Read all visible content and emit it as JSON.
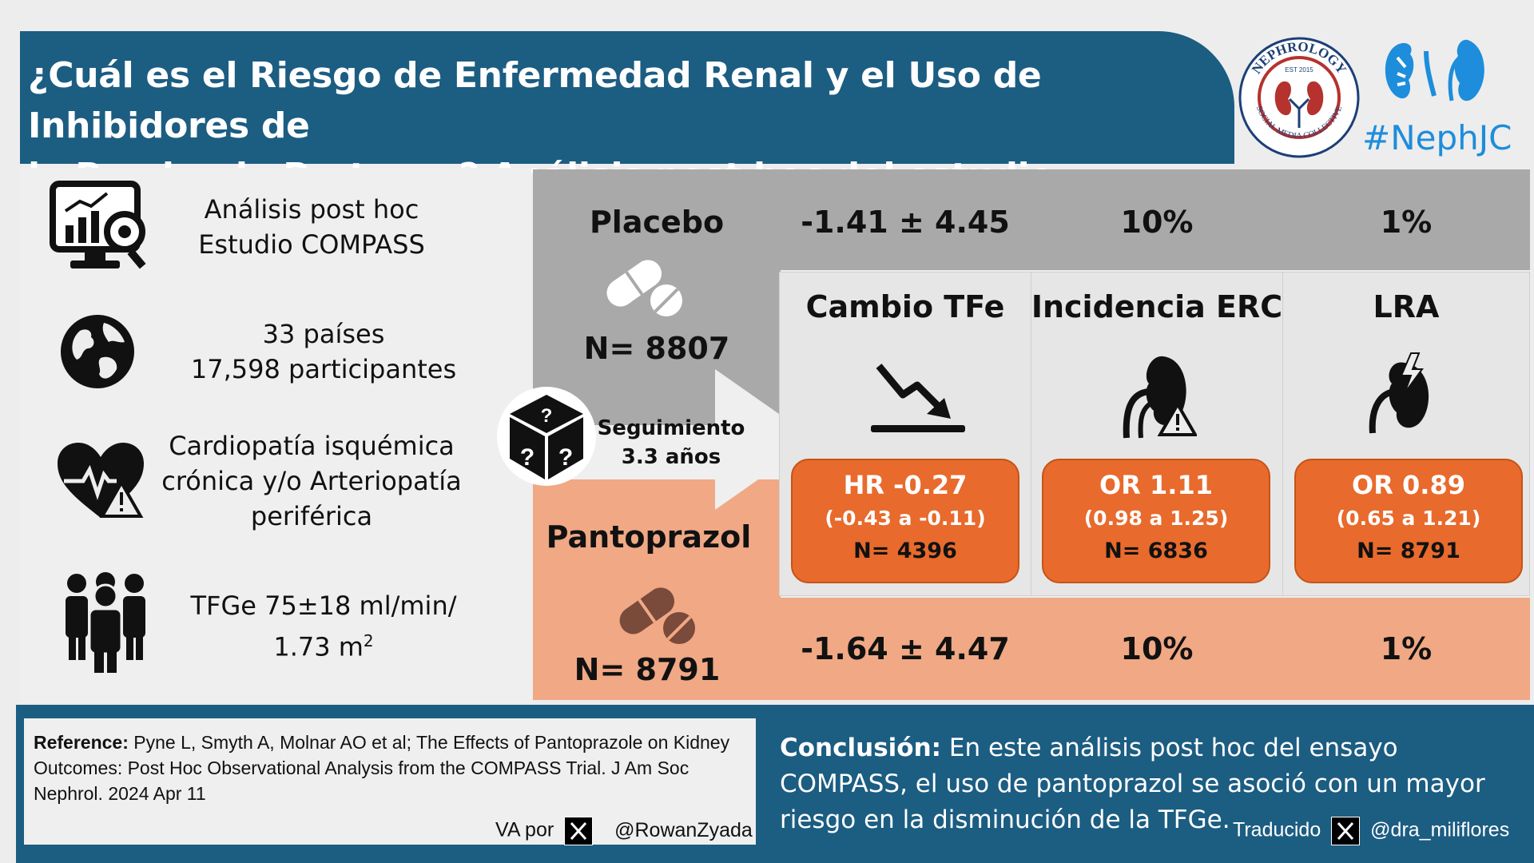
{
  "header": {
    "title_line1": "¿Cuál es el Riesgo de Enfermedad Renal y el Uso de Inhibidores de",
    "title_line2": "la Bomba de Protones? Análisis post hoc del estudio COMPASS"
  },
  "logos": {
    "nephrology_top": "NEPHROLOGY",
    "nephrology_est": "EST 2015",
    "nephrology_bottom": "SOCIAL MEDIA COLLECTIVE",
    "nephjc": "#NephJC"
  },
  "info": {
    "study_line1": "Análisis post hoc",
    "study_line2": "Estudio COMPASS",
    "countries_line1": "33 países",
    "countries_line2": "17,598 participantes",
    "condition_line1": "Cardiopatía isquémica",
    "condition_line2": "crónica y/o Arteriopatía",
    "condition_line3": "periférica",
    "egfr_line1": "TFGe 75±18 ml/min/",
    "egfr_line2": "1.73 m",
    "egfr_sup": "2"
  },
  "placebo": {
    "label": "Placebo",
    "n": "N= 8807",
    "egfr_change": "-1.41 ± 4.45",
    "ckd": "10%",
    "aki": "1%"
  },
  "pantoprazol": {
    "label": "Pantoprazol",
    "n": "N= 8791",
    "egfr_change": "-1.64 ± 4.47",
    "ckd": "10%",
    "aki": "1%"
  },
  "followup": {
    "line1": "Seguimiento",
    "line2": "3.3 años"
  },
  "outcomes": [
    {
      "title": "Cambio TFe",
      "main": "HR -0.27",
      "ci": "(-0.43 a -0.11)",
      "n": "N= 4396"
    },
    {
      "title": "Incidencia ERC",
      "main": "OR 1.11",
      "ci": "(0.98 a 1.25)",
      "n": "N= 6836"
    },
    {
      "title": "LRA",
      "main": "OR 0.89",
      "ci": "(0.65 a 1.21)",
      "n": "N= 8791"
    }
  ],
  "reference": {
    "label": "Reference:",
    "text": "Pyne L, Smyth A, Molnar AO et al; The Effects of Pantoprazole on Kidney Outcomes: Post Hoc Observational Analysis from the COMPASS Trial. J Am Soc Nephrol. 2024 Apr 11",
    "va_prefix": "VA por",
    "va_handle": "@RowanZyada"
  },
  "conclusion": {
    "label": "Conclusión:",
    "text": "En este análisis post hoc del ensayo COMPASS, el uso de pantoprazol  se asoció con un mayor riesgo en la disminución de la TFGe.",
    "trad_prefix": "Traducido",
    "trad_handle": "@dra_miliflores"
  },
  "colors": {
    "header_blue": "#1c5d82",
    "placebo_grey": "#a9a9a9",
    "pantoprazol_salmon": "#f0a885",
    "result_orange": "#e86a2c"
  }
}
